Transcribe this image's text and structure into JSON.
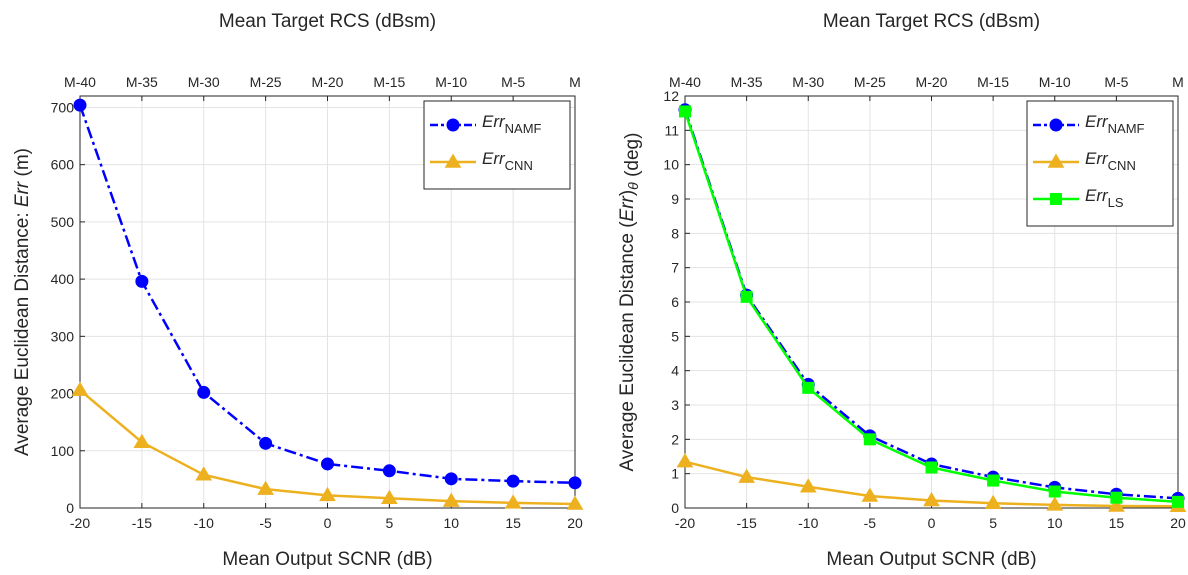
{
  "chart_data": [
    {
      "type": "line",
      "xlabel": "Mean Output SCNR (dB)",
      "x2label": "Mean Target RCS (dBsm)",
      "ylabel_parts": [
        {
          "t": "Average Euclidean Distance: ",
          "s": "n"
        },
        {
          "t": "Err",
          "s": "i"
        },
        {
          "t": " (m)",
          "s": "n"
        }
      ],
      "x": [
        -20,
        -15,
        -10,
        -5,
        0,
        5,
        10,
        15,
        20
      ],
      "xticks": [
        "-20",
        "-15",
        "-10",
        "-5",
        "0",
        "5",
        "10",
        "15",
        "20"
      ],
      "x2ticks": [
        "M-40",
        "M-35",
        "M-30",
        "M-25",
        "M-20",
        "M-15",
        "M-10",
        "M-5",
        "M"
      ],
      "xlim": [
        -20,
        20
      ],
      "ylim": [
        0,
        720
      ],
      "yticks": [
        0,
        100,
        200,
        300,
        400,
        500,
        600,
        700
      ],
      "grid": true,
      "legend_position": "top-right",
      "series": [
        {
          "name": "Err",
          "sub": "NAMF",
          "color": "#0000ff",
          "dash": "dashdot",
          "marker": "circle",
          "values": [
            704,
            396,
            202,
            113,
            77,
            65,
            51,
            47,
            44
          ]
        },
        {
          "name": "Err",
          "sub": "CNN",
          "color": "#edb120",
          "dash": "solid",
          "marker": "triangle",
          "values": [
            206,
            115,
            58,
            33,
            22,
            17,
            12,
            9,
            7
          ]
        }
      ]
    },
    {
      "type": "line",
      "xlabel": "Mean Output SCNR (dB)",
      "x2label": "Mean Target RCS (dBsm)",
      "ylabel_parts": [
        {
          "t": "Average Euclidean Distance (",
          "s": "n"
        },
        {
          "t": "Err",
          "s": "i"
        },
        {
          "t": ")",
          "s": "n"
        },
        {
          "t": "θ",
          "s": "isub"
        },
        {
          "t": " (deg)",
          "s": "n"
        }
      ],
      "x": [
        -20,
        -15,
        -10,
        -5,
        0,
        5,
        10,
        15,
        20
      ],
      "xticks": [
        "-20",
        "-15",
        "-10",
        "-5",
        "0",
        "5",
        "10",
        "15",
        "20"
      ],
      "x2ticks": [
        "M-40",
        "M-35",
        "M-30",
        "M-25",
        "M-20",
        "M-15",
        "M-10",
        "M-5",
        "M"
      ],
      "xlim": [
        -20,
        20
      ],
      "ylim": [
        0,
        12
      ],
      "yticks": [
        0,
        1,
        2,
        3,
        4,
        5,
        6,
        7,
        8,
        9,
        10,
        11,
        12
      ],
      "grid": true,
      "legend_position": "top-right",
      "series": [
        {
          "name": "Err",
          "sub": "NAMF",
          "color": "#0000ff",
          "dash": "dashdot",
          "marker": "circle",
          "values": [
            11.6,
            6.2,
            3.6,
            2.1,
            1.28,
            0.9,
            0.6,
            0.4,
            0.28
          ]
        },
        {
          "name": "Err",
          "sub": "CNN",
          "color": "#edb120",
          "dash": "solid",
          "marker": "triangle",
          "values": [
            1.35,
            0.9,
            0.62,
            0.35,
            0.22,
            0.14,
            0.09,
            0.06,
            0.05
          ]
        },
        {
          "name": "Err",
          "sub": "LS",
          "color": "#00ff00",
          "dash": "solid",
          "marker": "square",
          "values": [
            11.55,
            6.15,
            3.5,
            2.0,
            1.18,
            0.8,
            0.48,
            0.3,
            0.18
          ]
        }
      ]
    }
  ]
}
